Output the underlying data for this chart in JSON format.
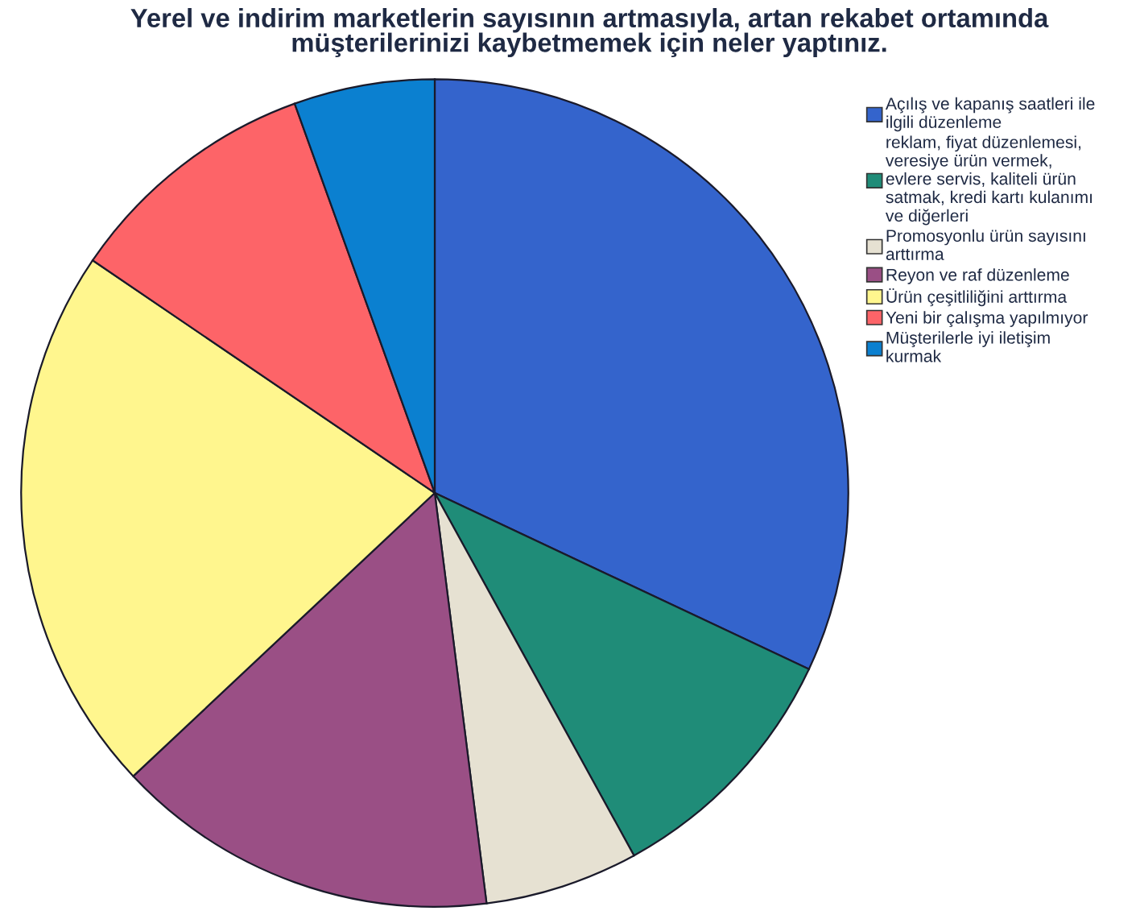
{
  "chart_data": {
    "type": "pie",
    "title": "Yerel ve indirim marketlerin sayısının artmasıyla, artan rekabet ortamında\nmüşterilerinizi kaybetmemek için neler yaptınız.",
    "categories": [
      "Açılış ve kapanış saatleri ile\nilgili düzenleme",
      "reklam, fiyat düzenlemesi,\nveresiye ürün vermek,\nevlere servis, kaliteli ürün\nsatmak, kredi kartı kulanımı\nve diğerleri",
      "Promosyonlu ürün sayısını\narttırma",
      "Reyon ve raf düzenleme",
      "Ürün çeşitliliğini arttırma",
      "Yeni bir çalışma yapılmıyor",
      "Müşterilerle iyi iletişim\nkurmak"
    ],
    "values": [
      32,
      10,
      6,
      15,
      21.5,
      10,
      5.5
    ],
    "colors": [
      "#3464cc",
      "#1f8c78",
      "#e6e1d2",
      "#9a4f85",
      "#fff68e",
      "#fd6468",
      "#0b80d0"
    ],
    "legend": "top right"
  }
}
